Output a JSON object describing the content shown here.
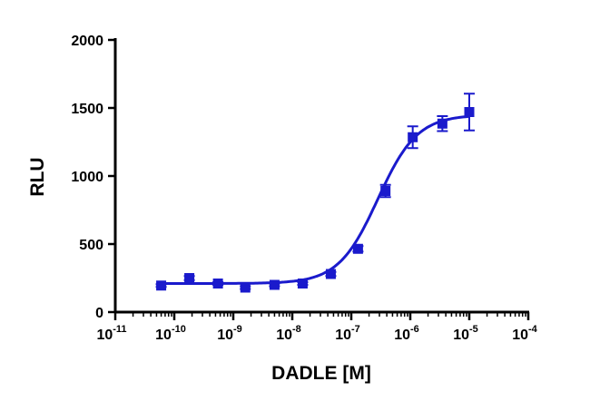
{
  "chart_data": {
    "type": "scatter",
    "xlabel": "DADLE [M]",
    "ylabel": "RLU",
    "xscale": "log",
    "xlim": [
      1e-11,
      0.0001
    ],
    "ylim": [
      0,
      2000
    ],
    "x_tick_labels": [
      {
        "base": "10",
        "exp": "-11"
      },
      {
        "base": "10",
        "exp": "-10"
      },
      {
        "base": "10",
        "exp": "-9"
      },
      {
        "base": "10",
        "exp": "-8"
      },
      {
        "base": "10",
        "exp": "-7"
      },
      {
        "base": "10",
        "exp": "-6"
      },
      {
        "base": "10",
        "exp": "-5"
      },
      {
        "base": "10",
        "exp": "-4"
      }
    ],
    "y_tick_labels": [
      "0",
      "500",
      "1000",
      "1500",
      "2000"
    ],
    "grid": false,
    "color": "#1a1acc",
    "series": [
      {
        "marker": "square",
        "points": [
          {
            "x": 6e-11,
            "y": 195,
            "err": 10
          },
          {
            "x": 1.8e-10,
            "y": 250,
            "err": 15
          },
          {
            "x": 5.5e-10,
            "y": 210,
            "err": 10
          },
          {
            "x": 1.6e-09,
            "y": 180,
            "err": 10
          },
          {
            "x": 5e-09,
            "y": 200,
            "err": 10
          },
          {
            "x": 1.5e-08,
            "y": 210,
            "err": 10
          },
          {
            "x": 4.5e-08,
            "y": 280,
            "err": 15
          },
          {
            "x": 1.3e-07,
            "y": 465,
            "err": 20
          },
          {
            "x": 3.8e-07,
            "y": 890,
            "err": 45
          },
          {
            "x": 1.1e-06,
            "y": 1285,
            "err": 80
          },
          {
            "x": 3.5e-06,
            "y": 1385,
            "err": 55
          },
          {
            "x": 1e-05,
            "y": 1470,
            "err": 135
          }
        ],
        "fit": {
          "model": "sigmoidal dose-response",
          "bottom": 210,
          "top": 1450,
          "log_ec50": -6.55,
          "hill": 1.3
        }
      }
    ]
  }
}
